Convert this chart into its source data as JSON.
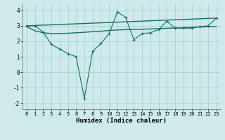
{
  "xlabel": "Humidex (Indice chaleur)",
  "background_color": "#ceeaea",
  "grid_color": "#aad4d4",
  "line_color": "#1a6b6b",
  "xlim": [
    -0.5,
    23.5
  ],
  "ylim": [
    -2.4,
    4.4
  ],
  "xticks": [
    0,
    1,
    2,
    3,
    4,
    5,
    6,
    7,
    8,
    9,
    10,
    11,
    12,
    13,
    14,
    15,
    16,
    17,
    18,
    19,
    20,
    21,
    22,
    23
  ],
  "yticks": [
    -2,
    -1,
    0,
    1,
    2,
    3,
    4
  ],
  "line1_x": [
    0,
    1,
    2,
    3,
    4,
    5,
    6,
    7,
    8,
    9,
    10,
    11,
    12,
    13,
    14,
    15,
    16,
    17,
    18,
    19,
    20,
    21,
    22,
    23
  ],
  "line1_y": [
    3.0,
    3.0,
    2.6,
    1.8,
    1.5,
    1.2,
    1.0,
    -1.7,
    1.35,
    1.85,
    2.5,
    3.9,
    3.55,
    2.1,
    2.5,
    2.55,
    2.75,
    3.3,
    2.85,
    2.85,
    2.85,
    2.95,
    3.0,
    3.5
  ],
  "line2_x": [
    0,
    23
  ],
  "line2_y": [
    3.0,
    3.5
  ],
  "line3_x": [
    0,
    1,
    2,
    3,
    4,
    5,
    6,
    7,
    8,
    9,
    10,
    11,
    12,
    13,
    14,
    15,
    16,
    17,
    18,
    19,
    20,
    21,
    22,
    23
  ],
  "line3_y": [
    2.95,
    2.68,
    2.55,
    2.5,
    2.5,
    2.52,
    2.55,
    2.58,
    2.62,
    2.65,
    2.7,
    2.73,
    2.75,
    2.77,
    2.78,
    2.8,
    2.82,
    2.84,
    2.86,
    2.88,
    2.9,
    2.92,
    2.94,
    2.96
  ]
}
